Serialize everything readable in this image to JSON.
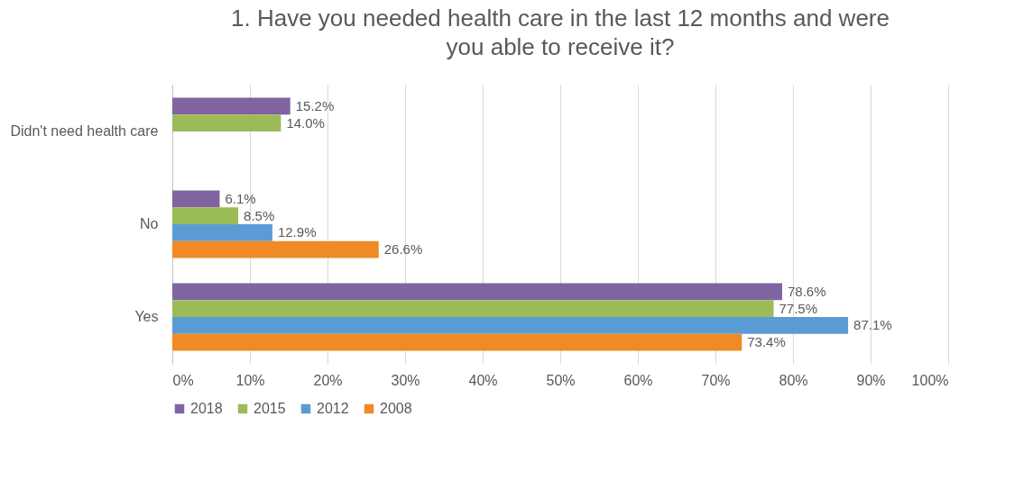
{
  "chart_data": {
    "type": "bar",
    "orientation": "horizontal",
    "title": "1. Have you needed health care in the last 12 months and were you able to receive it?",
    "categories": [
      "Didn't need health care",
      "No",
      "Yes"
    ],
    "series": [
      {
        "name": "2018",
        "color": "#8064a2",
        "values": [
          15.2,
          6.1,
          78.6
        ],
        "value_labels": [
          "15.2%",
          "6.1%",
          "78.6%"
        ]
      },
      {
        "name": "2015",
        "color": "#9bbb59",
        "values": [
          14.0,
          8.5,
          77.5
        ],
        "value_labels": [
          "14.0%",
          "8.5%",
          "77.5%"
        ]
      },
      {
        "name": "2012",
        "color": "#5b9bd5",
        "values": [
          null,
          12.9,
          87.1
        ],
        "value_labels": [
          null,
          "12.9%",
          "87.1%"
        ]
      },
      {
        "name": "2008",
        "color": "#f08a24",
        "values": [
          null,
          26.6,
          73.4
        ],
        "value_labels": [
          null,
          "26.6%",
          "73.4%"
        ]
      }
    ],
    "xlim": [
      0,
      100
    ],
    "xticks": [
      {
        "value": 0,
        "label": "0%"
      },
      {
        "value": 10,
        "label": "10%"
      },
      {
        "value": 20,
        "label": "20%"
      },
      {
        "value": 30,
        "label": "30%"
      },
      {
        "value": 40,
        "label": "40%"
      },
      {
        "value": 50,
        "label": "50%"
      },
      {
        "value": 60,
        "label": "60%"
      },
      {
        "value": 70,
        "label": "70%"
      },
      {
        "value": 80,
        "label": "80%"
      },
      {
        "value": 90,
        "label": "90%"
      },
      {
        "value": 100,
        "label": "100%"
      }
    ],
    "grid": "x",
    "legend": "bottom"
  }
}
